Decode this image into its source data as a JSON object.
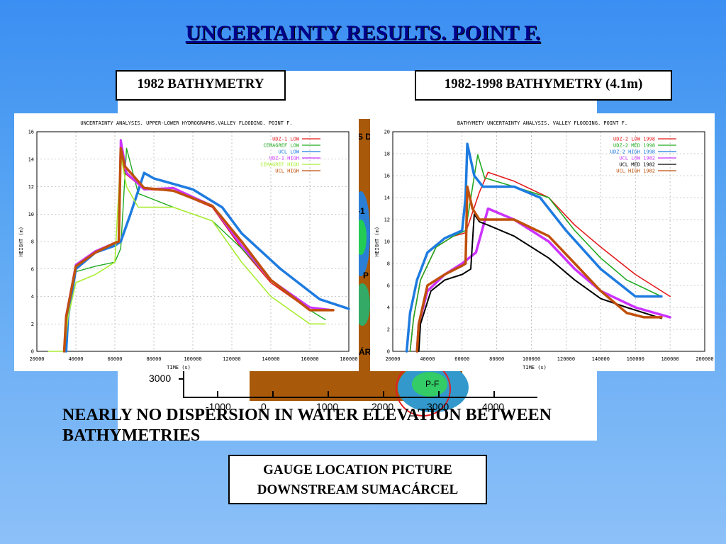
{
  "slide": {
    "title": "UNCERTAINTY RESULTS. POINT F.",
    "left_label": "1982 BATHYMETRY",
    "right_label": "1982-1998 BATHYMETRY (4.1m)",
    "note": "NEARLY NO DISPERSION IN WATER ELEVATION BETWEEN BATHYMETRIES",
    "gauge_caption_line1": "GAUGE LOCATION PICTURE",
    "gauge_caption_line2": "DOWNSTREAM SUMACÁRCEL"
  },
  "map": {
    "y_tick": "3000",
    "x_ticks": [
      "-1000",
      "0",
      "1000",
      "2000",
      "3000",
      "4000"
    ],
    "point_label": "P-F",
    "frag_s": "S D",
    "frag_1": "-1",
    "frag_p": "P",
    "frag_car": "ÁR"
  },
  "chart_data": [
    {
      "type": "line",
      "title": "UNCERTAINTY ANALYSIS. UPPER-LOWER HYDROGRAPHS.VALLEY FLOODING. POINT F.",
      "xlabel": "TIME (s)",
      "ylabel": "HEIGHT (m)",
      "xlim": [
        20000,
        180000
      ],
      "ylim": [
        0,
        16
      ],
      "xticks": [
        20000,
        40000,
        60000,
        80000,
        100000,
        120000,
        140000,
        160000,
        180000
      ],
      "yticks": [
        0,
        2,
        4,
        6,
        8,
        10,
        12,
        14,
        16
      ],
      "grid": true,
      "legend_position": "top-right",
      "series": [
        {
          "name": "UDZ-1 LOW",
          "color": "#e41a1c",
          "width": 1.6,
          "x": [
            34000,
            35000,
            40000,
            50000,
            60000,
            62000,
            63000,
            65000,
            75000,
            90000,
            110000,
            125000,
            140000,
            160000,
            172000
          ],
          "y": [
            0,
            2.5,
            6.2,
            7.2,
            7.9,
            8.0,
            14.8,
            13.0,
            11.8,
            11.7,
            10.5,
            7.5,
            5.0,
            3.0,
            3.0
          ]
        },
        {
          "name": "CEMAGREF LOW",
          "color": "#22aa22",
          "width": 1.4,
          "x": [
            34000,
            35000,
            40000,
            50000,
            60000,
            63000,
            66000,
            72000,
            90000,
            110000,
            125000,
            140000,
            160000,
            168000
          ],
          "y": [
            0,
            2.4,
            5.8,
            6.2,
            6.5,
            7.5,
            14.8,
            11.5,
            10.5,
            9.5,
            7.5,
            5.2,
            3.0,
            2.3
          ]
        },
        {
          "name": "UCL LOW",
          "color": "#1e7be0",
          "width": 3.5,
          "x": [
            35000,
            36000,
            40000,
            50000,
            60000,
            63000,
            68000,
            75000,
            80000,
            100000,
            115000,
            125000,
            145000,
            165000,
            180000
          ],
          "y": [
            0,
            2.5,
            6.0,
            7.2,
            7.7,
            8.0,
            10.0,
            13.0,
            12.6,
            11.8,
            10.5,
            8.6,
            6.0,
            3.8,
            3.1
          ]
        },
        {
          "name": "UDZ-1 HIGH",
          "color": "#cc33ff",
          "width": 3,
          "x": [
            34000,
            35000,
            40000,
            50000,
            60000,
            62000,
            63000,
            66000,
            75000,
            90000,
            110000,
            125000,
            140000,
            160000,
            172000
          ],
          "y": [
            0,
            2.6,
            6.3,
            7.3,
            7.9,
            8.0,
            15.4,
            13.0,
            11.8,
            11.9,
            10.6,
            7.7,
            5.2,
            3.2,
            3.0
          ]
        },
        {
          "name": "CEMAGREF HIGH",
          "color": "#aaee33",
          "width": 1.6,
          "x": [
            26000,
            34000,
            36000,
            40000,
            50000,
            60000,
            63000,
            66000,
            72000,
            90000,
            110000,
            125000,
            140000,
            160000,
            168000
          ],
          "y": [
            0,
            0,
            2.5,
            5.0,
            5.6,
            6.5,
            14.3,
            12.0,
            10.5,
            10.5,
            9.5,
            6.5,
            4.0,
            2.0,
            2.0
          ]
        },
        {
          "name": "UCL HIGH",
          "color": "#c0500a",
          "width": 3.5,
          "x": [
            34000,
            35000,
            40000,
            50000,
            60000,
            62000,
            63000,
            65000,
            75000,
            90000,
            110000,
            125000,
            140000,
            160000,
            172000
          ],
          "y": [
            0,
            2.5,
            6.2,
            7.2,
            7.9,
            8.0,
            14.8,
            13.5,
            11.9,
            11.7,
            10.6,
            8.0,
            5.2,
            3.0,
            3.0
          ]
        }
      ]
    },
    {
      "type": "line",
      "title": "BATHYMETY UNCERTAINTY ANALYSIS. VALLEY FLOODING. POINT F.",
      "xlabel": "TIME (s)",
      "ylabel": "HEIGHT (m)",
      "xlim": [
        20000,
        200000
      ],
      "ylim": [
        0,
        20
      ],
      "xticks": [
        20000,
        40000,
        60000,
        80000,
        100000,
        120000,
        140000,
        160000,
        180000,
        200000
      ],
      "yticks": [
        0,
        2,
        4,
        6,
        8,
        10,
        12,
        14,
        16,
        18,
        20
      ],
      "grid": true,
      "legend_position": "top-right",
      "series": [
        {
          "name": "UDZ-2 LOW 1998",
          "color": "#e41a1c",
          "width": 1.6,
          "x": [
            30000,
            32000,
            36000,
            45000,
            55000,
            62000,
            70000,
            75000,
            90000,
            110000,
            125000,
            140000,
            160000,
            180000
          ],
          "y": [
            0,
            3,
            6.5,
            9.5,
            10.5,
            10.8,
            14.5,
            16.3,
            15.5,
            14.0,
            11.5,
            9.5,
            7.0,
            5.0
          ]
        },
        {
          "name": "UDZ-2 MED 1998",
          "color": "#22aa22",
          "width": 1.6,
          "x": [
            30000,
            32000,
            36000,
            45000,
            55000,
            62000,
            69000,
            73000,
            90000,
            110000,
            125000,
            140000,
            155000,
            175000
          ],
          "y": [
            0,
            3,
            6.5,
            9.5,
            10.5,
            11.0,
            17.9,
            15.8,
            15.0,
            14.0,
            11.0,
            8.5,
            6.5,
            5.0
          ]
        },
        {
          "name": "UDZ-2 HIGH 1998",
          "color": "#1e7be0",
          "width": 3.5,
          "x": [
            28000,
            30000,
            34000,
            40000,
            50000,
            60000,
            62000,
            63000,
            67000,
            72000,
            90000,
            105000,
            120000,
            140000,
            160000,
            175000
          ],
          "y": [
            0,
            3.5,
            6.5,
            9.0,
            10.3,
            11.0,
            14.0,
            18.9,
            16.0,
            15.0,
            15.0,
            14.0,
            11.0,
            7.5,
            5.0,
            5.0
          ]
        },
        {
          "name": "UCL LOW 1982",
          "color": "#cc33ff",
          "width": 3.5,
          "x": [
            34000,
            35000,
            40000,
            50000,
            60000,
            68000,
            75000,
            90000,
            110000,
            125000,
            140000,
            160000,
            180000
          ],
          "y": [
            0,
            2.5,
            5.5,
            7.0,
            8.0,
            9.0,
            13.0,
            12.0,
            10.0,
            7.5,
            5.5,
            4.0,
            3.1
          ]
        },
        {
          "name": "UCL MED 1982",
          "color": "#000000",
          "width": 2,
          "x": [
            35000,
            36000,
            42000,
            50000,
            60000,
            65000,
            67000,
            70000,
            75000,
            90000,
            110000,
            125000,
            140000,
            155000,
            175000
          ],
          "y": [
            0,
            2.5,
            5.5,
            6.5,
            7.0,
            7.5,
            12.5,
            11.8,
            11.5,
            10.5,
            8.5,
            6.5,
            4.8,
            4.0,
            3.0
          ]
        },
        {
          "name": "UCL HIGH 1982",
          "color": "#c0500a",
          "width": 3.5,
          "x": [
            34000,
            35000,
            40000,
            50000,
            60000,
            62000,
            63000,
            66000,
            70000,
            90000,
            110000,
            125000,
            140000,
            155000,
            165000,
            175000
          ],
          "y": [
            0,
            2.5,
            6.0,
            7.0,
            7.8,
            8.0,
            15.0,
            13.0,
            12.0,
            12.0,
            10.5,
            8.0,
            5.5,
            3.5,
            3.1,
            3.1
          ]
        }
      ]
    }
  ]
}
